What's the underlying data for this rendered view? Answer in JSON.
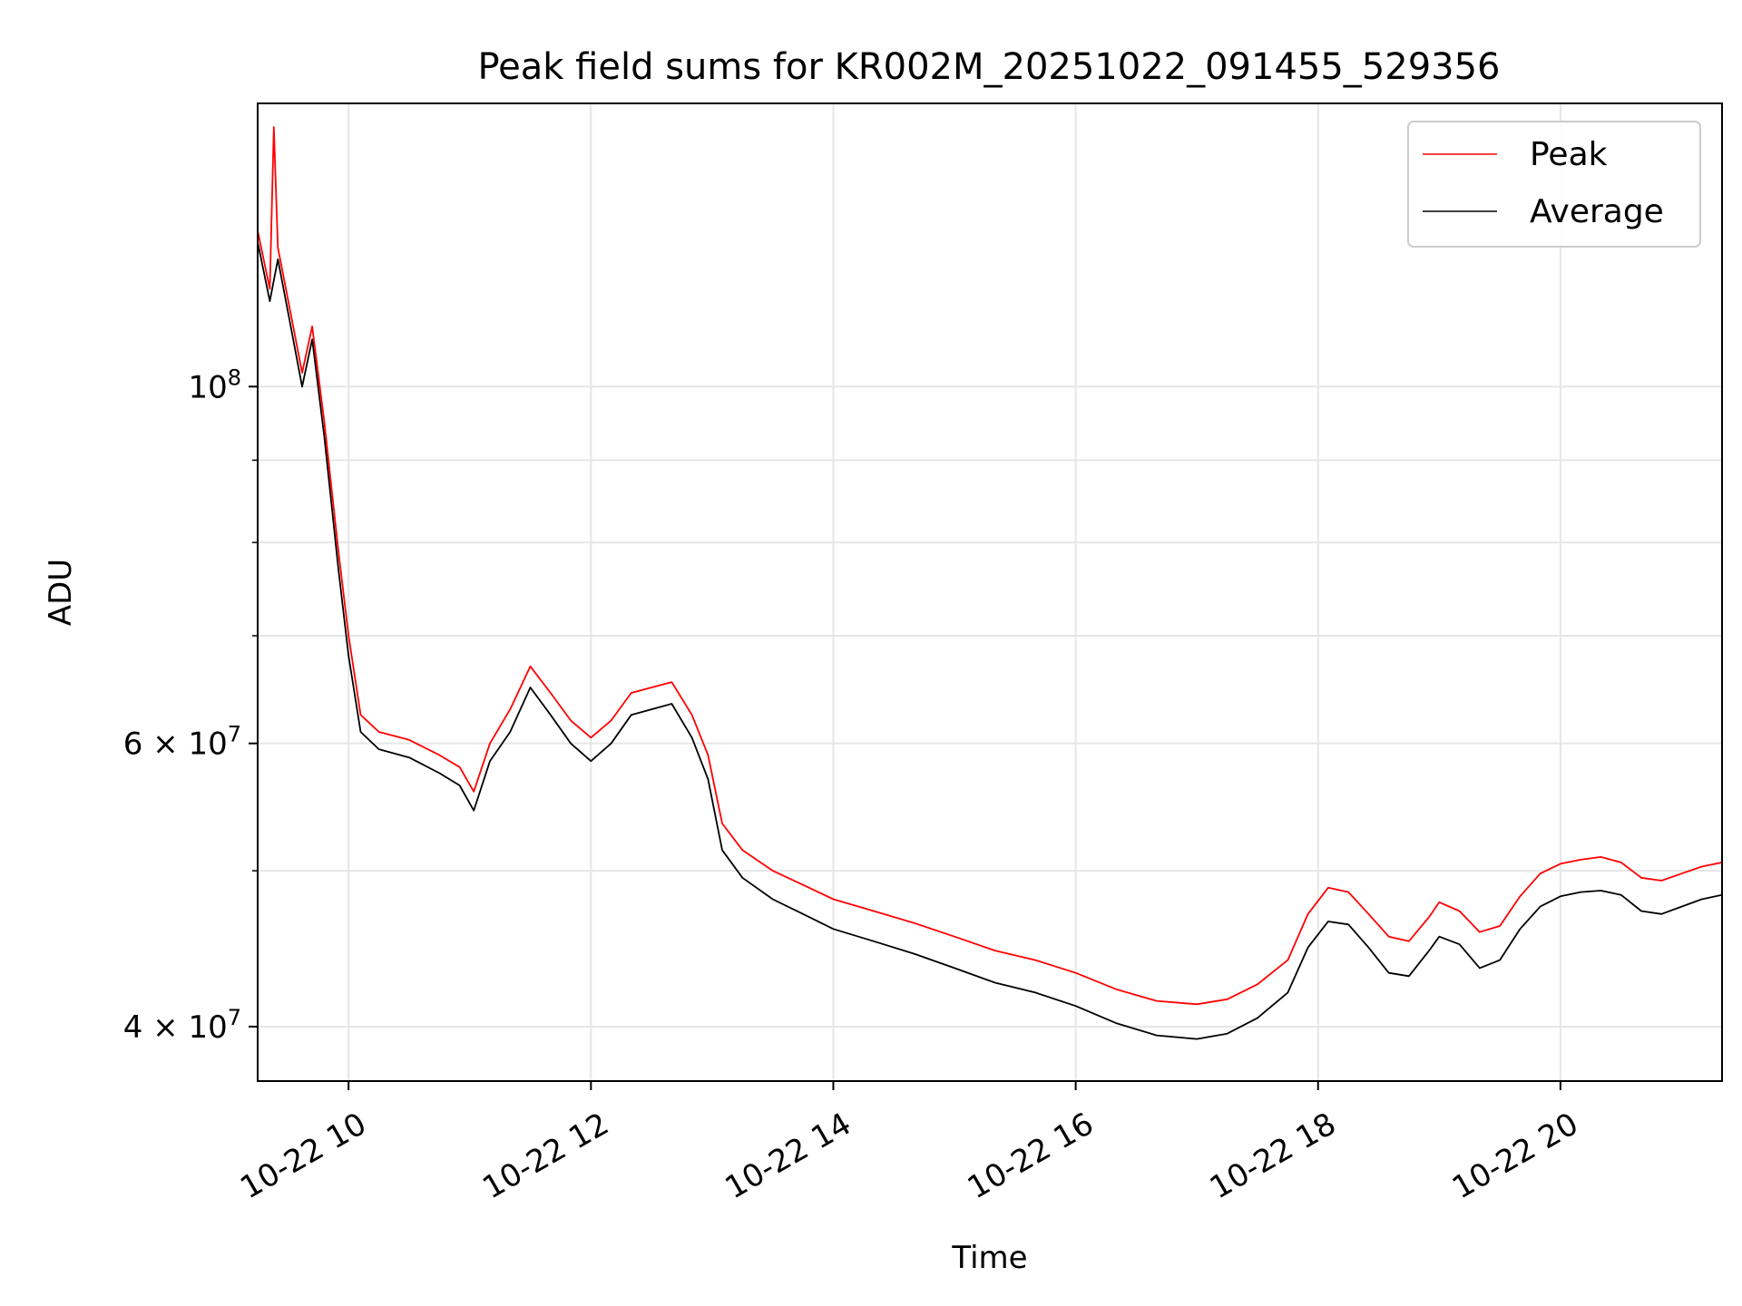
{
  "chart_data": {
    "type": "line",
    "title": "Peak field sums for KR002M_20251022_091455_529356",
    "xlabel": "Time",
    "ylabel": "ADU",
    "y_scale": "log",
    "xlim": [
      "2025-10-22 09:15",
      "2025-10-22 21:20"
    ],
    "ylim": [
      37000000,
      150000000
    ],
    "grid": true,
    "legend_position": "top-right",
    "x_ticks": [
      {
        "value": "2025-10-22 10:00",
        "label": "10-22 10"
      },
      {
        "value": "2025-10-22 12:00",
        "label": "10-22 12"
      },
      {
        "value": "2025-10-22 14:00",
        "label": "10-22 14"
      },
      {
        "value": "2025-10-22 16:00",
        "label": "10-22 16"
      },
      {
        "value": "2025-10-22 18:00",
        "label": "10-22 18"
      },
      {
        "value": "2025-10-22 20:00",
        "label": "10-22 20"
      }
    ],
    "y_ticks": [
      {
        "value": 40000000,
        "base": "4",
        "exp": "7"
      },
      {
        "value": 60000000,
        "base": "6",
        "exp": "7"
      },
      {
        "value": 100000000,
        "base": "",
        "exp": "8"
      }
    ],
    "y_minor_ticks": [
      50000000,
      70000000,
      80000000,
      90000000
    ],
    "series": [
      {
        "name": "Average",
        "color": "#000000",
        "points": [
          [
            "2025-10-22 09:15",
            123000000
          ],
          [
            "2025-10-22 09:21",
            113000000
          ],
          [
            "2025-10-22 09:25",
            120000000
          ],
          [
            "2025-10-22 09:32",
            108000000
          ],
          [
            "2025-10-22 09:37",
            100000000
          ],
          [
            "2025-10-22 09:42",
            107000000
          ],
          [
            "2025-10-22 09:48",
            93000000
          ],
          [
            "2025-10-22 09:55",
            77000000
          ],
          [
            "2025-10-22 10:00",
            68000000
          ],
          [
            "2025-10-22 10:06",
            61000000
          ],
          [
            "2025-10-22 10:15",
            59500000
          ],
          [
            "2025-10-22 10:30",
            58800000
          ],
          [
            "2025-10-22 10:45",
            57500000
          ],
          [
            "2025-10-22 10:55",
            56500000
          ],
          [
            "2025-10-22 11:02",
            54500000
          ],
          [
            "2025-10-22 11:10",
            58500000
          ],
          [
            "2025-10-22 11:20",
            61000000
          ],
          [
            "2025-10-22 11:30",
            65000000
          ],
          [
            "2025-10-22 11:40",
            62500000
          ],
          [
            "2025-10-22 11:50",
            60000000
          ],
          [
            "2025-10-22 12:00",
            58500000
          ],
          [
            "2025-10-22 12:10",
            60000000
          ],
          [
            "2025-10-22 12:20",
            62500000
          ],
          [
            "2025-10-22 12:30",
            63000000
          ],
          [
            "2025-10-22 12:40",
            63500000
          ],
          [
            "2025-10-22 12:50",
            60500000
          ],
          [
            "2025-10-22 12:58",
            57000000
          ],
          [
            "2025-10-22 13:05",
            51500000
          ],
          [
            "2025-10-22 13:15",
            49500000
          ],
          [
            "2025-10-22 13:30",
            48000000
          ],
          [
            "2025-10-22 13:45",
            47000000
          ],
          [
            "2025-10-22 14:00",
            46000000
          ],
          [
            "2025-10-22 14:20",
            45200000
          ],
          [
            "2025-10-22 14:40",
            44400000
          ],
          [
            "2025-10-22 15:00",
            43500000
          ],
          [
            "2025-10-22 15:20",
            42600000
          ],
          [
            "2025-10-22 15:40",
            42000000
          ],
          [
            "2025-10-22 16:00",
            41200000
          ],
          [
            "2025-10-22 16:20",
            40200000
          ],
          [
            "2025-10-22 16:40",
            39500000
          ],
          [
            "2025-10-22 17:00",
            39300000
          ],
          [
            "2025-10-22 17:15",
            39600000
          ],
          [
            "2025-10-22 17:30",
            40500000
          ],
          [
            "2025-10-22 17:45",
            42000000
          ],
          [
            "2025-10-22 17:55",
            44800000
          ],
          [
            "2025-10-22 18:05",
            46500000
          ],
          [
            "2025-10-22 18:15",
            46300000
          ],
          [
            "2025-10-22 18:25",
            44800000
          ],
          [
            "2025-10-22 18:35",
            43200000
          ],
          [
            "2025-10-22 18:45",
            43000000
          ],
          [
            "2025-10-22 18:55",
            44600000
          ],
          [
            "2025-10-22 19:00",
            45500000
          ],
          [
            "2025-10-22 19:10",
            45000000
          ],
          [
            "2025-10-22 19:20",
            43500000
          ],
          [
            "2025-10-22 19:30",
            44000000
          ],
          [
            "2025-10-22 19:40",
            46000000
          ],
          [
            "2025-10-22 19:50",
            47500000
          ],
          [
            "2025-10-22 20:00",
            48200000
          ],
          [
            "2025-10-22 20:10",
            48500000
          ],
          [
            "2025-10-22 20:20",
            48600000
          ],
          [
            "2025-10-22 20:30",
            48300000
          ],
          [
            "2025-10-22 20:40",
            47200000
          ],
          [
            "2025-10-22 20:50",
            47000000
          ],
          [
            "2025-10-22 21:00",
            47500000
          ],
          [
            "2025-10-22 21:10",
            48000000
          ],
          [
            "2025-10-22 21:20",
            48300000
          ]
        ]
      },
      {
        "name": "Peak",
        "color": "#ff0000",
        "points": [
          [
            "2025-10-22 09:15",
            125000000
          ],
          [
            "2025-10-22 09:21",
            115000000
          ],
          [
            "2025-10-22 09:23",
            145000000
          ],
          [
            "2025-10-22 09:25",
            122000000
          ],
          [
            "2025-10-22 09:32",
            110000000
          ],
          [
            "2025-10-22 09:37",
            102000000
          ],
          [
            "2025-10-22 09:42",
            109000000
          ],
          [
            "2025-10-22 09:48",
            95000000
          ],
          [
            "2025-10-22 09:55",
            79000000
          ],
          [
            "2025-10-22 10:00",
            70000000
          ],
          [
            "2025-10-22 10:06",
            62500000
          ],
          [
            "2025-10-22 10:15",
            61000000
          ],
          [
            "2025-10-22 10:30",
            60300000
          ],
          [
            "2025-10-22 10:45",
            59000000
          ],
          [
            "2025-10-22 10:55",
            58000000
          ],
          [
            "2025-10-22 11:02",
            56000000
          ],
          [
            "2025-10-22 11:10",
            60000000
          ],
          [
            "2025-10-22 11:20",
            63000000
          ],
          [
            "2025-10-22 11:30",
            67000000
          ],
          [
            "2025-10-22 11:40",
            64500000
          ],
          [
            "2025-10-22 11:50",
            62000000
          ],
          [
            "2025-10-22 12:00",
            60500000
          ],
          [
            "2025-10-22 12:10",
            62000000
          ],
          [
            "2025-10-22 12:20",
            64500000
          ],
          [
            "2025-10-22 12:30",
            65000000
          ],
          [
            "2025-10-22 12:40",
            65500000
          ],
          [
            "2025-10-22 12:50",
            62500000
          ],
          [
            "2025-10-22 12:58",
            59000000
          ],
          [
            "2025-10-22 13:05",
            53500000
          ],
          [
            "2025-10-22 13:15",
            51500000
          ],
          [
            "2025-10-22 13:30",
            50000000
          ],
          [
            "2025-10-22 13:45",
            49000000
          ],
          [
            "2025-10-22 14:00",
            48000000
          ],
          [
            "2025-10-22 14:20",
            47200000
          ],
          [
            "2025-10-22 14:40",
            46400000
          ],
          [
            "2025-10-22 15:00",
            45500000
          ],
          [
            "2025-10-22 15:20",
            44600000
          ],
          [
            "2025-10-22 15:40",
            44000000
          ],
          [
            "2025-10-22 16:00",
            43200000
          ],
          [
            "2025-10-22 16:20",
            42200000
          ],
          [
            "2025-10-22 16:40",
            41500000
          ],
          [
            "2025-10-22 17:00",
            41300000
          ],
          [
            "2025-10-22 17:15",
            41600000
          ],
          [
            "2025-10-22 17:30",
            42500000
          ],
          [
            "2025-10-22 17:45",
            44000000
          ],
          [
            "2025-10-22 17:55",
            47000000
          ],
          [
            "2025-10-22 18:05",
            48800000
          ],
          [
            "2025-10-22 18:15",
            48500000
          ],
          [
            "2025-10-22 18:25",
            47000000
          ],
          [
            "2025-10-22 18:35",
            45500000
          ],
          [
            "2025-10-22 18:45",
            45200000
          ],
          [
            "2025-10-22 18:55",
            46800000
          ],
          [
            "2025-10-22 19:00",
            47800000
          ],
          [
            "2025-10-22 19:10",
            47200000
          ],
          [
            "2025-10-22 19:20",
            45800000
          ],
          [
            "2025-10-22 19:30",
            46200000
          ],
          [
            "2025-10-22 19:40",
            48200000
          ],
          [
            "2025-10-22 19:50",
            49800000
          ],
          [
            "2025-10-22 20:00",
            50500000
          ],
          [
            "2025-10-22 20:10",
            50800000
          ],
          [
            "2025-10-22 20:20",
            51000000
          ],
          [
            "2025-10-22 20:30",
            50600000
          ],
          [
            "2025-10-22 20:40",
            49500000
          ],
          [
            "2025-10-22 20:50",
            49300000
          ],
          [
            "2025-10-22 21:00",
            49800000
          ],
          [
            "2025-10-22 21:10",
            50300000
          ],
          [
            "2025-10-22 21:20",
            50600000
          ]
        ]
      }
    ]
  }
}
